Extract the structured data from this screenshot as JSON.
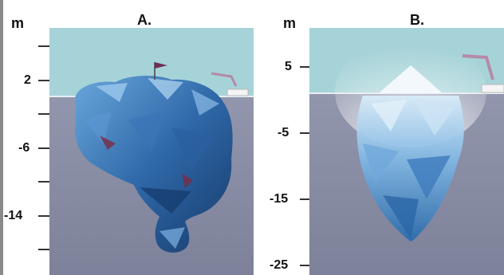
{
  "panel_a": {
    "label": "A.",
    "unit": "m",
    "ticks": [
      "2",
      "-6",
      "-14"
    ]
  },
  "panel_b": {
    "label": "B.",
    "unit": "m",
    "ticks": [
      "5",
      "-5",
      "-15",
      "-25"
    ]
  },
  "colors": {
    "sky": "#a6d3d8",
    "sea": "#8e93a8",
    "ice_deep": "#1f4f86",
    "ice_mid": "#4b88c8",
    "ice_light": "#e3f1fb"
  }
}
